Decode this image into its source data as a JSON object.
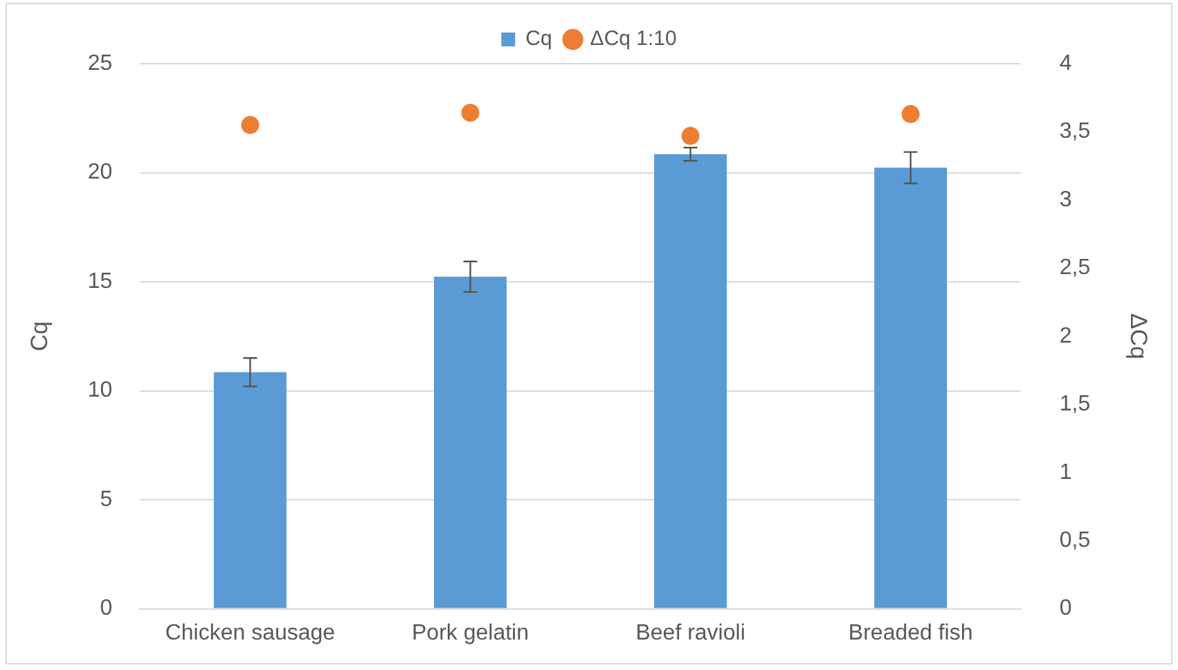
{
  "chart_data": {
    "type": "bar",
    "ylabel": "Cq",
    "y2label": "ΔCq",
    "categories": [
      "Chicken sausage",
      "Pork gelatin",
      "Beef ravioli",
      "Breaded fish"
    ],
    "series": [
      {
        "name": "Cq",
        "color": "#5b9bd5",
        "values": [
          10.85,
          15.23,
          20.85,
          20.23
        ],
        "errors": [
          0.65,
          0.7,
          0.3,
          0.72
        ]
      },
      {
        "name": "ΔCq 1:10",
        "type": "scatter",
        "axis": "y2",
        "color": "#ed7d31",
        "marker": "circle",
        "values": [
          3.55,
          3.64,
          3.47,
          3.63
        ]
      }
    ],
    "ylim": [
      0,
      25
    ],
    "yticks": [
      0,
      5,
      10,
      15,
      20,
      25
    ],
    "y2lim": [
      0,
      4
    ],
    "y2ticks": [
      0,
      {
        "value": 0.5,
        "label": "0,5"
      },
      1,
      {
        "value": 1.5,
        "label": "1,5"
      },
      2,
      {
        "value": 2.5,
        "label": "2,5"
      },
      3,
      {
        "value": 3.5,
        "label": "3,5"
      },
      4
    ],
    "grid": "y",
    "legend": "top"
  }
}
